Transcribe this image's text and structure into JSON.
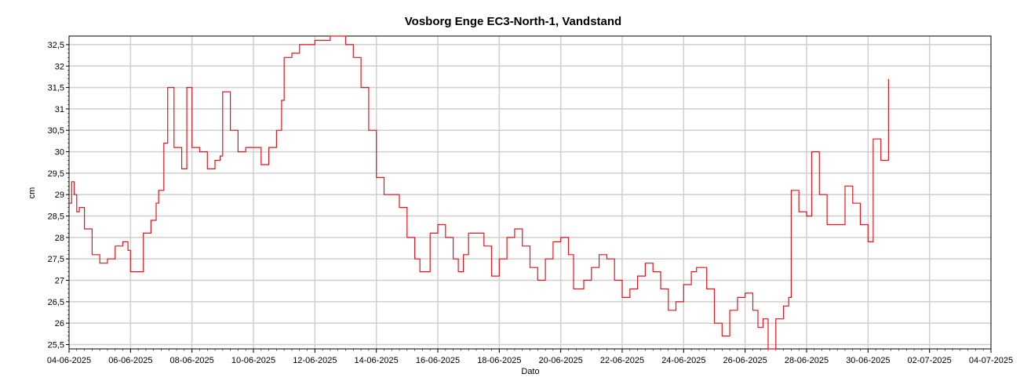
{
  "chart_data": {
    "type": "line",
    "title": "Vosborg Enge EC3-North-1, Vandstand",
    "xlabel": "Dato",
    "ylabel": "cm",
    "x_range": [
      "2025-06-04",
      "2025-07-04"
    ],
    "ylim": [
      25.4,
      32.7
    ],
    "grid": true,
    "color": "#e8141b",
    "x_tick_labels": [
      "04-06-2025",
      "06-06-2025",
      "08-06-2025",
      "10-06-2025",
      "12-06-2025",
      "14-06-2025",
      "16-06-2025",
      "18-06-2025",
      "20-06-2025",
      "22-06-2025",
      "24-06-2025",
      "26-06-2025",
      "28-06-2025",
      "30-06-2025",
      "02-07-2025",
      "04-07-2025"
    ],
    "y_ticks": [
      25.5,
      26,
      26.5,
      27,
      27.5,
      28,
      28.5,
      29,
      29.5,
      30,
      30.5,
      31,
      31.5,
      32,
      32.5
    ],
    "y_tick_labels": [
      "25,5",
      "26",
      "26,5",
      "27",
      "27,5",
      "28",
      "28,5",
      "29",
      "29,5",
      "30",
      "30,5",
      "31",
      "31,5",
      "32",
      "32,5"
    ],
    "series": [
      {
        "points": [
          [
            "2025-06-04T00:00",
            28.8
          ],
          [
            "2025-06-04T02:00",
            29.3
          ],
          [
            "2025-06-04T04:00",
            29.0
          ],
          [
            "2025-06-04T06:00",
            28.6
          ],
          [
            "2025-06-04T08:00",
            28.7
          ],
          [
            "2025-06-04T12:00",
            28.2
          ],
          [
            "2025-06-04T18:00",
            27.6
          ],
          [
            "2025-06-05T00:00",
            27.4
          ],
          [
            "2025-06-05T06:00",
            27.5
          ],
          [
            "2025-06-05T12:00",
            27.8
          ],
          [
            "2025-06-05T18:00",
            27.9
          ],
          [
            "2025-06-05T22:00",
            27.7
          ],
          [
            "2025-06-06T00:00",
            27.2
          ],
          [
            "2025-06-06T08:00",
            27.2
          ],
          [
            "2025-06-06T10:00",
            28.1
          ],
          [
            "2025-06-06T16:00",
            28.4
          ],
          [
            "2025-06-06T20:00",
            28.8
          ],
          [
            "2025-06-06T22:00",
            29.1
          ],
          [
            "2025-06-07T02:00",
            30.2
          ],
          [
            "2025-06-07T05:00",
            31.5
          ],
          [
            "2025-06-07T10:00",
            30.1
          ],
          [
            "2025-06-07T16:00",
            29.6
          ],
          [
            "2025-06-07T20:00",
            31.5
          ],
          [
            "2025-06-08T00:00",
            30.1
          ],
          [
            "2025-06-08T06:00",
            30.0
          ],
          [
            "2025-06-08T12:00",
            29.6
          ],
          [
            "2025-06-08T18:00",
            29.8
          ],
          [
            "2025-06-08T22:00",
            29.9
          ],
          [
            "2025-06-09T00:00",
            31.4
          ],
          [
            "2025-06-09T06:00",
            30.5
          ],
          [
            "2025-06-09T12:00",
            30.0
          ],
          [
            "2025-06-09T18:00",
            30.1
          ],
          [
            "2025-06-10T00:00",
            30.1
          ],
          [
            "2025-06-10T06:00",
            29.7
          ],
          [
            "2025-06-10T12:00",
            30.1
          ],
          [
            "2025-06-10T18:00",
            30.5
          ],
          [
            "2025-06-10T22:00",
            31.2
          ],
          [
            "2025-06-11T00:00",
            32.2
          ],
          [
            "2025-06-11T06:00",
            32.3
          ],
          [
            "2025-06-11T12:00",
            32.5
          ],
          [
            "2025-06-12T00:00",
            32.6
          ],
          [
            "2025-06-12T12:00",
            32.7
          ],
          [
            "2025-06-13T00:00",
            32.5
          ],
          [
            "2025-06-13T06:00",
            32.2
          ],
          [
            "2025-06-13T12:00",
            31.5
          ],
          [
            "2025-06-13T18:00",
            30.5
          ],
          [
            "2025-06-14T00:00",
            29.4
          ],
          [
            "2025-06-14T06:00",
            29.0
          ],
          [
            "2025-06-14T12:00",
            29.0
          ],
          [
            "2025-06-14T18:00",
            28.7
          ],
          [
            "2025-06-15T00:00",
            28.0
          ],
          [
            "2025-06-15T06:00",
            27.5
          ],
          [
            "2025-06-15T10:00",
            27.2
          ],
          [
            "2025-06-15T18:00",
            28.1
          ],
          [
            "2025-06-16T00:00",
            28.3
          ],
          [
            "2025-06-16T06:00",
            28.0
          ],
          [
            "2025-06-16T12:00",
            27.5
          ],
          [
            "2025-06-16T16:00",
            27.2
          ],
          [
            "2025-06-16T20:00",
            27.6
          ],
          [
            "2025-06-17T00:00",
            28.1
          ],
          [
            "2025-06-17T06:00",
            28.1
          ],
          [
            "2025-06-17T12:00",
            27.8
          ],
          [
            "2025-06-17T18:00",
            27.1
          ],
          [
            "2025-06-18T00:00",
            27.5
          ],
          [
            "2025-06-18T06:00",
            28.0
          ],
          [
            "2025-06-18T12:00",
            28.2
          ],
          [
            "2025-06-18T18:00",
            27.8
          ],
          [
            "2025-06-19T00:00",
            27.3
          ],
          [
            "2025-06-19T06:00",
            27.0
          ],
          [
            "2025-06-19T12:00",
            27.5
          ],
          [
            "2025-06-19T18:00",
            27.9
          ],
          [
            "2025-06-20T00:00",
            28.0
          ],
          [
            "2025-06-20T06:00",
            27.6
          ],
          [
            "2025-06-20T10:00",
            26.8
          ],
          [
            "2025-06-20T18:00",
            27.0
          ],
          [
            "2025-06-21T00:00",
            27.3
          ],
          [
            "2025-06-21T06:00",
            27.6
          ],
          [
            "2025-06-21T12:00",
            27.5
          ],
          [
            "2025-06-21T18:00",
            27.0
          ],
          [
            "2025-06-22T00:00",
            26.6
          ],
          [
            "2025-06-22T06:00",
            26.8
          ],
          [
            "2025-06-22T12:00",
            27.1
          ],
          [
            "2025-06-22T18:00",
            27.4
          ],
          [
            "2025-06-23T00:00",
            27.2
          ],
          [
            "2025-06-23T06:00",
            26.8
          ],
          [
            "2025-06-23T12:00",
            26.3
          ],
          [
            "2025-06-23T18:00",
            26.5
          ],
          [
            "2025-06-24T00:00",
            26.9
          ],
          [
            "2025-06-24T06:00",
            27.2
          ],
          [
            "2025-06-24T10:00",
            27.3
          ],
          [
            "2025-06-24T18:00",
            26.8
          ],
          [
            "2025-06-25T00:00",
            26.0
          ],
          [
            "2025-06-25T06:00",
            25.7
          ],
          [
            "2025-06-25T12:00",
            26.3
          ],
          [
            "2025-06-25T18:00",
            26.6
          ],
          [
            "2025-06-26T00:00",
            26.7
          ],
          [
            "2025-06-26T06:00",
            26.3
          ],
          [
            "2025-06-26T10:00",
            25.9
          ],
          [
            "2025-06-26T14:00",
            26.1
          ],
          [
            "2025-06-26T18:00",
            25.4
          ],
          [
            "2025-06-27T00:00",
            26.1
          ],
          [
            "2025-06-27T06:00",
            26.4
          ],
          [
            "2025-06-27T10:00",
            26.6
          ],
          [
            "2025-06-27T12:00",
            29.1
          ],
          [
            "2025-06-27T18:00",
            28.6
          ],
          [
            "2025-06-28T00:00",
            28.5
          ],
          [
            "2025-06-28T04:00",
            30.0
          ],
          [
            "2025-06-28T10:00",
            29.0
          ],
          [
            "2025-06-28T16:00",
            28.3
          ],
          [
            "2025-06-29T00:00",
            28.3
          ],
          [
            "2025-06-29T06:00",
            29.2
          ],
          [
            "2025-06-29T12:00",
            28.8
          ],
          [
            "2025-06-29T18:00",
            28.3
          ],
          [
            "2025-06-30T00:00",
            27.9
          ],
          [
            "2025-06-30T04:00",
            30.3
          ],
          [
            "2025-06-30T10:00",
            29.8
          ],
          [
            "2025-06-30T16:00",
            31.7
          ]
        ]
      }
    ]
  }
}
